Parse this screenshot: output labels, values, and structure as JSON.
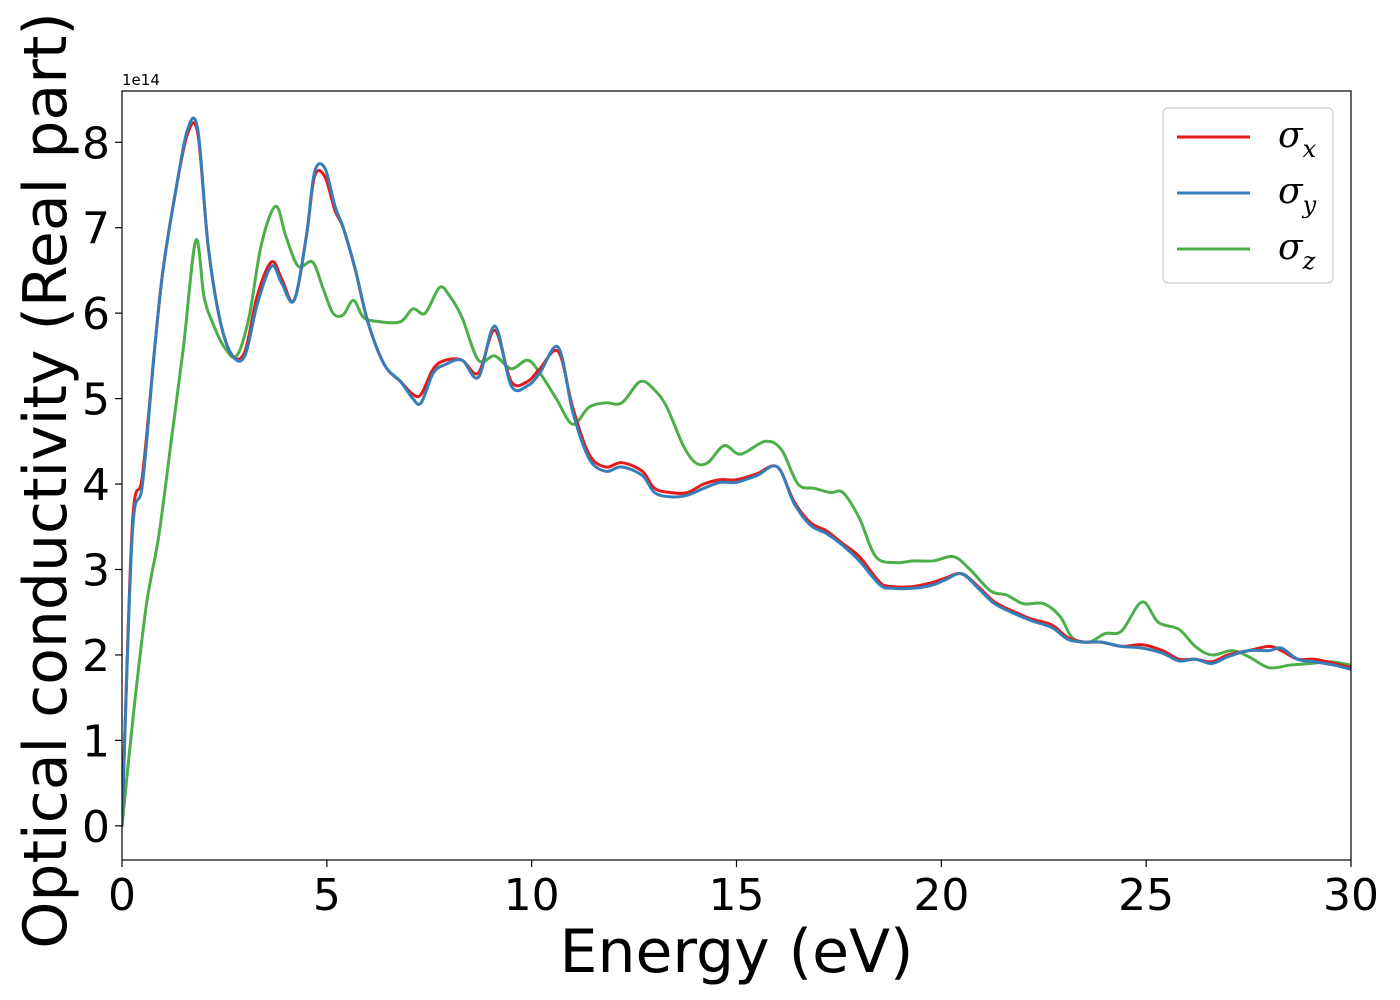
{
  "chart_data": {
    "type": "line",
    "xlabel": "Energy (eV)",
    "ylabel": "Optical conductivity (Real part)",
    "y_offset_label": "1e14",
    "xlim": [
      0,
      30
    ],
    "ylim": [
      -0.4,
      8.6
    ],
    "x_ticks": [
      0,
      5,
      10,
      15,
      20,
      25,
      30
    ],
    "y_ticks": [
      0,
      1,
      2,
      3,
      4,
      5,
      6,
      7,
      8
    ],
    "legend_position": "top-right",
    "grid": false,
    "series": [
      {
        "name": "σ",
        "name_sub": "x",
        "color": "#e41a1c",
        "x": [
          0,
          0.25,
          0.5,
          0.8,
          1.0,
          1.3,
          1.6,
          1.85,
          2.1,
          2.4,
          2.7,
          3.0,
          3.3,
          3.65,
          3.9,
          4.2,
          4.5,
          4.7,
          4.95,
          5.2,
          5.4,
          5.7,
          6.0,
          6.4,
          6.8,
          7.1,
          7.3,
          7.6,
          7.9,
          8.3,
          8.7,
          9.1,
          9.5,
          9.9,
          10.2,
          10.65,
          11.0,
          11.4,
          11.8,
          12.2,
          12.7,
          13.0,
          13.4,
          13.8,
          14.2,
          14.6,
          15.0,
          15.5,
          16.0,
          16.4,
          16.8,
          17.2,
          17.6,
          18.0,
          18.5,
          18.8,
          19.3,
          19.8,
          20.1,
          20.5,
          20.9,
          21.3,
          21.8,
          22.2,
          22.7,
          23.1,
          23.5,
          23.9,
          24.4,
          24.9,
          25.4,
          25.8,
          26.2,
          26.6,
          27.0,
          27.5,
          28.0,
          28.3,
          28.7,
          29.1,
          29.6,
          30.0
        ],
        "values": [
          0,
          3.5,
          4.1,
          5.6,
          6.5,
          7.4,
          8.1,
          8.1,
          6.8,
          5.9,
          5.5,
          5.55,
          6.2,
          6.6,
          6.4,
          6.15,
          6.9,
          7.6,
          7.6,
          7.2,
          7.0,
          6.5,
          5.9,
          5.4,
          5.2,
          5.05,
          5.05,
          5.35,
          5.45,
          5.45,
          5.3,
          5.8,
          5.2,
          5.2,
          5.35,
          5.55,
          4.9,
          4.35,
          4.2,
          4.25,
          4.15,
          3.95,
          3.9,
          3.9,
          4.0,
          4.05,
          4.05,
          4.12,
          4.2,
          3.8,
          3.55,
          3.45,
          3.3,
          3.15,
          2.85,
          2.8,
          2.8,
          2.85,
          2.9,
          2.95,
          2.8,
          2.62,
          2.5,
          2.42,
          2.35,
          2.2,
          2.15,
          2.15,
          2.1,
          2.12,
          2.05,
          1.95,
          1.95,
          1.92,
          2.0,
          2.05,
          2.1,
          2.05,
          1.95,
          1.95,
          1.9,
          1.85
        ]
      },
      {
        "name": "σ",
        "name_sub": "y",
        "color": "#377eb8",
        "x": [
          0,
          0.25,
          0.5,
          0.8,
          1.0,
          1.3,
          1.6,
          1.85,
          2.1,
          2.4,
          2.7,
          3.0,
          3.3,
          3.65,
          3.9,
          4.2,
          4.5,
          4.7,
          4.95,
          5.2,
          5.4,
          5.7,
          6.0,
          6.4,
          6.8,
          7.1,
          7.3,
          7.6,
          7.9,
          8.3,
          8.7,
          9.1,
          9.5,
          9.9,
          10.2,
          10.65,
          11.0,
          11.4,
          11.8,
          12.2,
          12.7,
          13.0,
          13.4,
          13.8,
          14.2,
          14.6,
          15.0,
          15.5,
          16.0,
          16.4,
          16.8,
          17.2,
          17.6,
          18.0,
          18.5,
          18.8,
          19.3,
          19.8,
          20.1,
          20.5,
          20.9,
          21.3,
          21.8,
          22.2,
          22.7,
          23.1,
          23.5,
          23.9,
          24.4,
          24.9,
          25.4,
          25.8,
          26.2,
          26.6,
          27.0,
          27.5,
          28.0,
          28.3,
          28.7,
          29.1,
          29.6,
          30.0
        ],
        "values": [
          0,
          3.4,
          4.0,
          5.6,
          6.5,
          7.4,
          8.15,
          8.15,
          6.8,
          5.9,
          5.5,
          5.5,
          6.1,
          6.55,
          6.35,
          6.15,
          6.9,
          7.65,
          7.7,
          7.25,
          7.0,
          6.5,
          5.9,
          5.4,
          5.2,
          5.0,
          4.95,
          5.3,
          5.4,
          5.45,
          5.25,
          5.85,
          5.15,
          5.15,
          5.3,
          5.6,
          4.85,
          4.3,
          4.15,
          4.2,
          4.1,
          3.9,
          3.85,
          3.87,
          3.95,
          4.02,
          4.02,
          4.1,
          4.2,
          3.78,
          3.52,
          3.42,
          3.28,
          3.1,
          2.82,
          2.78,
          2.78,
          2.82,
          2.88,
          2.95,
          2.78,
          2.6,
          2.48,
          2.4,
          2.32,
          2.18,
          2.15,
          2.15,
          2.1,
          2.08,
          2.02,
          1.93,
          1.95,
          1.9,
          1.98,
          2.05,
          2.05,
          2.08,
          1.95,
          1.92,
          1.88,
          1.83
        ]
      },
      {
        "name": "σ",
        "name_sub": "z",
        "color": "#4daf4a",
        "x": [
          0,
          0.3,
          0.6,
          0.9,
          1.2,
          1.5,
          1.8,
          2.0,
          2.2,
          2.5,
          2.8,
          3.1,
          3.4,
          3.75,
          4.0,
          4.3,
          4.65,
          4.9,
          5.15,
          5.4,
          5.65,
          5.9,
          6.3,
          6.8,
          7.1,
          7.4,
          7.75,
          8.0,
          8.3,
          8.7,
          9.1,
          9.5,
          9.9,
          10.2,
          10.6,
          11.0,
          11.4,
          11.8,
          12.2,
          12.65,
          13.0,
          13.3,
          13.7,
          14.0,
          14.3,
          14.7,
          15.1,
          15.7,
          16.1,
          16.5,
          16.9,
          17.3,
          17.6,
          18.0,
          18.4,
          18.9,
          19.3,
          19.8,
          20.3,
          20.7,
          21.2,
          21.6,
          22.0,
          22.5,
          22.9,
          23.2,
          23.6,
          24.0,
          24.4,
          24.9,
          25.3,
          25.8,
          26.2,
          26.6,
          27.1,
          27.5,
          28.0,
          28.5,
          29.0,
          29.5,
          30.0
        ],
        "values": [
          0,
          1.4,
          2.6,
          3.4,
          4.5,
          5.6,
          6.85,
          6.2,
          5.9,
          5.6,
          5.5,
          5.95,
          6.8,
          7.25,
          6.9,
          6.55,
          6.6,
          6.3,
          6.0,
          5.98,
          6.15,
          5.95,
          5.9,
          5.9,
          6.05,
          6.0,
          6.3,
          6.2,
          5.95,
          5.45,
          5.5,
          5.35,
          5.45,
          5.3,
          5.0,
          4.7,
          4.9,
          4.95,
          4.95,
          5.2,
          5.1,
          4.9,
          4.45,
          4.25,
          4.25,
          4.45,
          4.35,
          4.5,
          4.4,
          4.0,
          3.95,
          3.9,
          3.9,
          3.6,
          3.15,
          3.08,
          3.1,
          3.1,
          3.15,
          3.0,
          2.75,
          2.7,
          2.6,
          2.6,
          2.45,
          2.2,
          2.15,
          2.25,
          2.28,
          2.62,
          2.38,
          2.3,
          2.1,
          2.0,
          2.05,
          1.98,
          1.85,
          1.88,
          1.9,
          1.92,
          1.88
        ]
      }
    ]
  }
}
